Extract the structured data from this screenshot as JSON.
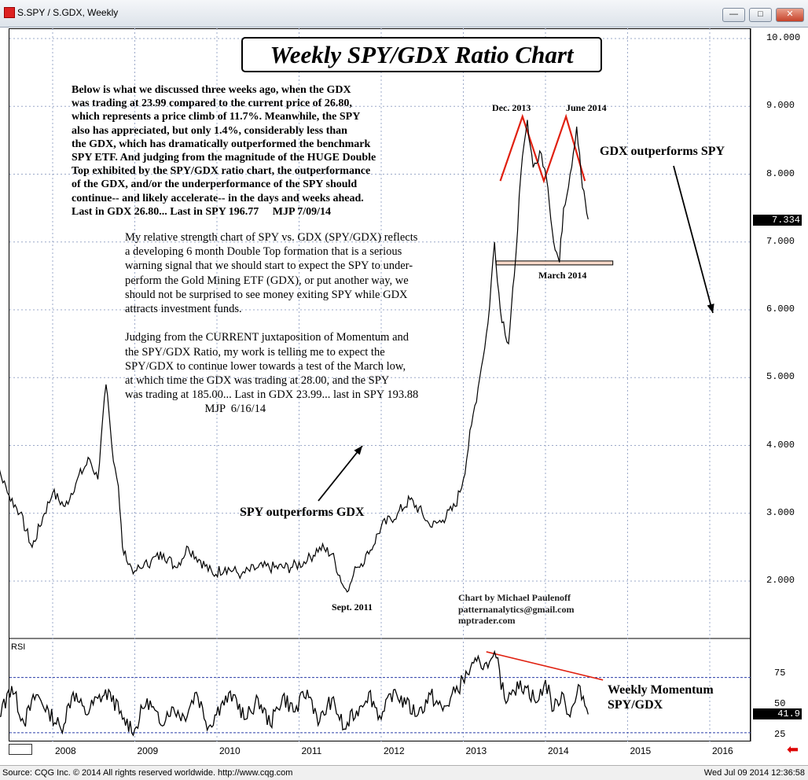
{
  "window": {
    "title": "S.SPY / S.GDX, Weekly",
    "buttons": [
      "minimize",
      "maximize",
      "close"
    ]
  },
  "footer": {
    "left": "Source: CQG Inc. © 2014 All rights reserved worldwide. http://www.cqg.com",
    "right": "Wed Jul 09 2014 12:36:58"
  },
  "chart_data": [
    {
      "type": "line",
      "title": "Weekly SPY/GDX Ratio Chart",
      "xlabel": "",
      "ylabel": "",
      "ylim": [
        1.6,
        10.4
      ],
      "yticks": [
        "10.000",
        "9.000",
        "8.000",
        "7.000",
        "6.000",
        "5.000",
        "4.000",
        "3.000",
        "2.000"
      ],
      "x_ticks": [
        "2008",
        "2009",
        "2010",
        "2011",
        "2012",
        "2013",
        "2014",
        "2015",
        "2016"
      ],
      "last_value": "7.334",
      "series": [
        {
          "x": [
            2007.2,
            2007.3,
            2007.45,
            2007.6,
            2007.75,
            2007.9,
            2008.0,
            2008.15,
            2008.3,
            2008.45,
            2008.55,
            2008.65,
            2008.72,
            2008.8,
            2008.85,
            2008.9,
            2009.0,
            2009.1,
            2009.2,
            2009.35,
            2009.5,
            2009.65,
            2009.8,
            2009.95,
            2010.1,
            2010.3,
            2010.5,
            2010.7,
            2010.9,
            2011.1,
            2011.25,
            2011.4,
            2011.55,
            2011.62,
            2011.7,
            2011.85,
            2012.0,
            2012.2,
            2012.35,
            2012.5,
            2012.6,
            2012.75,
            2012.9,
            2013.0,
            2013.1,
            2013.2,
            2013.3,
            2013.38,
            2013.45,
            2013.55,
            2013.62,
            2013.7,
            2013.78,
            2013.85,
            2013.95,
            2014.03,
            2014.1,
            2014.17,
            2014.22,
            2014.3,
            2014.38,
            2014.45,
            2014.52
          ],
          "values": [
            4.0,
            3.8,
            3.3,
            3.0,
            2.5,
            3.0,
            3.3,
            3.1,
            3.5,
            3.8,
            3.5,
            4.9,
            4.0,
            3.4,
            2.5,
            2.3,
            2.15,
            2.2,
            2.3,
            2.4,
            2.2,
            2.5,
            2.3,
            2.1,
            2.2,
            2.1,
            2.2,
            2.2,
            2.2,
            2.3,
            2.5,
            2.4,
            1.9,
            1.95,
            2.2,
            2.4,
            2.8,
            3.0,
            3.2,
            3.0,
            2.8,
            2.9,
            3.1,
            3.5,
            4.3,
            5.0,
            5.8,
            7.0,
            6.0,
            5.5,
            6.5,
            8.0,
            8.8,
            8.1,
            8.3,
            7.8,
            7.0,
            6.7,
            7.5,
            8.0,
            8.7,
            7.8,
            7.334
          ]
        }
      ],
      "annotations": [
        "Dec. 2013",
        "June 2014",
        "March 2014",
        "Sept. 2011",
        "GDX outperforms SPY",
        "SPY outperforms GDX"
      ]
    },
    {
      "type": "line",
      "title": "RSI",
      "ylim": [
        20,
        100
      ],
      "yticks": [
        "75",
        "50",
        "25"
      ],
      "last_value": "41.9",
      "reference_lines": [
        72,
        27
      ],
      "series": [
        {
          "x": [
            2007.2,
            2007.35,
            2007.5,
            2007.65,
            2007.8,
            2007.95,
            2008.1,
            2008.25,
            2008.4,
            2008.55,
            2008.7,
            2008.85,
            2009.0,
            2009.15,
            2009.3,
            2009.45,
            2009.6,
            2009.75,
            2009.9,
            2010.05,
            2010.2,
            2010.35,
            2010.5,
            2010.65,
            2010.8,
            2010.95,
            2011.1,
            2011.25,
            2011.4,
            2011.55,
            2011.7,
            2011.85,
            2012.0,
            2012.15,
            2012.3,
            2012.45,
            2012.6,
            2012.75,
            2012.9,
            2013.05,
            2013.2,
            2013.3,
            2013.4,
            2013.5,
            2013.6,
            2013.75,
            2013.9,
            2014.0,
            2014.1,
            2014.2,
            2014.3,
            2014.42,
            2014.52
          ],
          "values": [
            55,
            40,
            65,
            35,
            58,
            45,
            30,
            60,
            42,
            55,
            60,
            38,
            30,
            55,
            35,
            48,
            40,
            60,
            32,
            50,
            58,
            38,
            55,
            33,
            57,
            44,
            62,
            36,
            55,
            30,
            45,
            60,
            38,
            62,
            50,
            42,
            58,
            45,
            60,
            75,
            85,
            80,
            88,
            55,
            62,
            65,
            52,
            70,
            45,
            60,
            40,
            65,
            42
          ]
        }
      ],
      "annotations": [
        "Weekly Momentum",
        "SPY/GDX"
      ]
    }
  ],
  "text": {
    "chart_title": "Weekly SPY/GDX Ratio Chart",
    "note1": "Below is what we discussed three weeks ago, when the GDX\nwas trading at 23.99 compared to the current price of 26.80,\nwhich represents a price climb of 11.7%. Meanwhile, the SPY\nalso has appreciated, but only 1.4%, considerably less than\nthe GDX, which has dramatically outperformed the benchmark\nSPY ETF. And judging from the magnitude of the HUGE Double\nTop exhibited by the SPY/GDX ratio chart, the outperformance\nof the GDX, and/or the underperformance of the SPY should\ncontinue-- and likely accelerate-- in the days and weeks ahead.\nLast in GDX 26.80... Last in SPY 196.77     MJP 7/09/14",
    "note2": "My relative strength chart of SPY vs. GDX (SPY/GDX) reflects\na developing 6 month Double Top formation that is a serious\nwarning signal that we should start to expect the SPY to under-\nperform the Gold Mining ETF (GDX), or put another way, we\nshould not be surprised to see money exiting SPY while GDX\nattracts investment funds.\n\nJudging from the CURRENT juxtaposition of Momentum and\nthe SPY/GDX Ratio, my work is telling me to expect the\nSPY/GDX to continue lower towards a test of the March low,\nat which time the GDX was trading at 28.00, and the SPY\nwas trading at 185.00... Last in GDX 23.99... last in SPY 193.88\n                            MJP  6/16/14",
    "credit": "Chart by Michael Paulenoff\npatternanalytics@gmail.com\nmptrader.com",
    "ann_dec2013": "Dec. 2013",
    "ann_june2014": "June 2014",
    "ann_march2014": "March 2014",
    "ann_sept2011": "Sept. 2011",
    "ann_gdx": "GDX outperforms SPY",
    "ann_spy": "SPY outperforms GDX",
    "ann_momentum1": "Weekly Momentum",
    "ann_momentum2": "SPY/GDX",
    "rsi_label": "RSI"
  },
  "colors": {
    "line": "#000000",
    "annotation_red": "#e02010",
    "support_fill": "#f7d8c8"
  }
}
